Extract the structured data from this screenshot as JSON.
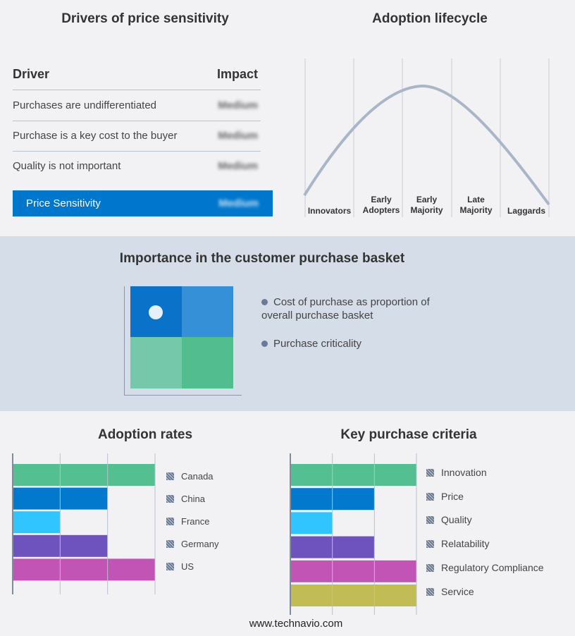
{
  "drivers": {
    "title": "Drivers of price sensitivity",
    "col_driver": "Driver",
    "col_impact": "Impact",
    "rows": [
      {
        "driver": "Purchases are undifferentiated",
        "impact": "Medium"
      },
      {
        "driver": "Purchase is a key cost to the buyer",
        "impact": "Medium"
      },
      {
        "driver": "Quality is not important",
        "impact": "Medium"
      }
    ],
    "summary": {
      "label": "Price Sensitivity",
      "impact": "Medium"
    },
    "accent": "#0077cc"
  },
  "lifecycle": {
    "title": "Adoption lifecycle",
    "stages": [
      [
        "Innovators"
      ],
      [
        "Early",
        "Adopters"
      ],
      [
        "Early",
        "Majority"
      ],
      [
        "Late",
        "Majority"
      ],
      [
        "Laggards"
      ]
    ]
  },
  "basket": {
    "title": "Importance in the customer purchase basket",
    "legend": [
      "Cost of purchase as proportion of overall purchase basket",
      "Purchase criticality"
    ],
    "colors": [
      "#0a72c9",
      "#3590d8",
      "#76c8aa",
      "#52be8f"
    ]
  },
  "chart_data": [
    {
      "type": "bar",
      "orientation": "horizontal",
      "title": "Adoption rates",
      "categories": [
        "Canada",
        "China",
        "France",
        "Germany",
        "US"
      ],
      "values": [
        3,
        2,
        1,
        2,
        3
      ],
      "xlim": [
        0,
        3
      ],
      "grid": true,
      "legend": "right",
      "colors": [
        "#52be8f",
        "#0077cc",
        "#2ec4ff",
        "#6c51bd",
        "#c052b4"
      ]
    },
    {
      "type": "bar",
      "orientation": "horizontal",
      "title": "Key purchase criteria",
      "categories": [
        "Innovation",
        "Price",
        "Quality",
        "Relatability",
        "Regulatory Compliance",
        "Service"
      ],
      "values": [
        3,
        2,
        1,
        2,
        3,
        3
      ],
      "xlim": [
        0,
        3
      ],
      "grid": true,
      "legend": "right",
      "colors": [
        "#52be8f",
        "#0077cc",
        "#2ec4ff",
        "#6c51bd",
        "#c052b4",
        "#c0bb52"
      ]
    }
  ],
  "footer": "www.technavio.com"
}
